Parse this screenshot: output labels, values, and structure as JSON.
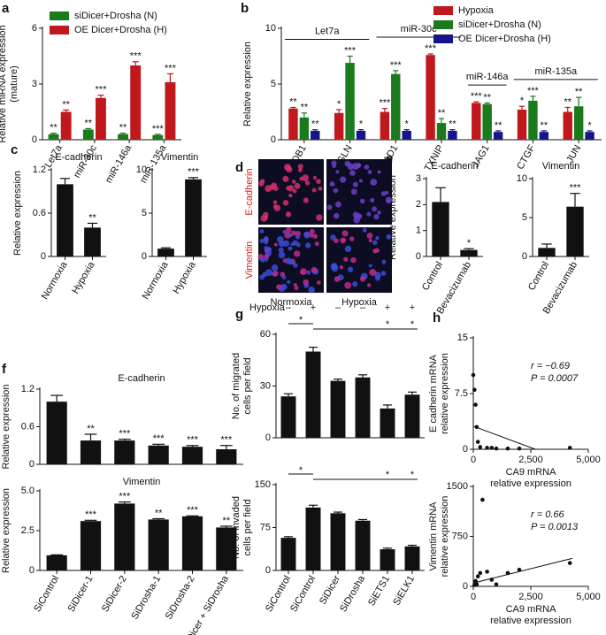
{
  "chart_data": [
    {
      "type": "bar",
      "panel": "a",
      "ylabel": [
        "Relative miRNA expression",
        "(mature)"
      ],
      "categories": [
        "Let7a",
        "miR-30c",
        "miR-146a",
        "miR-135a"
      ],
      "series": [
        {
          "name": "siDicer+Drosha (N)",
          "color": "#1b7a1b",
          "values": [
            0.3,
            0.55,
            0.3,
            0.25
          ],
          "errors": [
            0.05,
            0.05,
            0.05,
            0.04
          ],
          "annotations": [
            "**",
            "**",
            "**",
            "***"
          ]
        },
        {
          "name": "OE Dicer+Drosha (H)",
          "color": "#c0181c",
          "values": [
            1.5,
            2.25,
            4.0,
            3.1
          ],
          "errors": [
            0.1,
            0.15,
            0.2,
            0.45
          ],
          "annotations": [
            "**",
            "***",
            "***",
            "***"
          ]
        }
      ],
      "ylim": [
        0,
        6
      ],
      "yticks": [
        0,
        3,
        6
      ],
      "legend": "upper left"
    },
    {
      "type": "bar",
      "panel": "b",
      "ylabel": [
        "Relative expression"
      ],
      "categories": [
        "RHOB1",
        "TAGLN",
        "SERTAD1",
        "TXNIP",
        "JAG1",
        "CTGF",
        "JUN"
      ],
      "groups": [
        {
          "label": "Let7a",
          "span": [
            "RHOB1",
            "TAGLN"
          ]
        },
        {
          "label": "miR-30c",
          "span": [
            "SERTAD1",
            "TXNIP"
          ]
        },
        {
          "label": "miR-146a",
          "span": [
            "JAG1",
            "JAG1"
          ]
        },
        {
          "label": "miR-135a",
          "span": [
            "CTGF",
            "JUN"
          ]
        }
      ],
      "series": [
        {
          "name": "Hypoxia",
          "color": "#c0181c",
          "values": [
            2.8,
            2.4,
            2.5,
            7.6,
            3.3,
            2.7,
            2.5
          ],
          "errors": [
            0.1,
            0.3,
            0.3,
            0.1,
            0.1,
            0.3,
            0.4
          ],
          "annotations": [
            "**",
            "*",
            "***",
            "***",
            "***",
            "*",
            "**"
          ]
        },
        {
          "name": "siDicer+Drosha (N)",
          "color": "#1b7a1b",
          "values": [
            2.0,
            6.9,
            5.9,
            1.5,
            3.2,
            3.5,
            3.0
          ],
          "errors": [
            0.4,
            0.6,
            0.3,
            0.4,
            0.1,
            0.4,
            0.8
          ],
          "annotations": [
            "**",
            "***",
            "***",
            "**",
            "**",
            "***",
            "**"
          ]
        },
        {
          "name": "OE Dicer+Drosha (H)",
          "color": "#17158a",
          "values": [
            0.8,
            0.8,
            0.8,
            0.8,
            0.7,
            0.7,
            0.7
          ],
          "errors": [
            0.1,
            0.1,
            0.1,
            0.1,
            0.1,
            0.1,
            0.1
          ],
          "annotations": [
            "**",
            "*",
            "*",
            "**",
            "**",
            "**",
            "*"
          ]
        }
      ],
      "ylim": [
        0,
        10
      ],
      "yticks": [
        0,
        5,
        10
      ],
      "legend": "upper right"
    },
    {
      "type": "bar",
      "panel": "c",
      "title": "E-cadherin",
      "ylabel": [
        "Relative expression"
      ],
      "categories": [
        "Normoxia",
        "Hypoxia"
      ],
      "values": [
        1.0,
        0.4
      ],
      "errors": [
        0.08,
        0.06
      ],
      "annotations": [
        null,
        "**"
      ],
      "color": "#111111",
      "ylim": [
        0,
        1.2
      ],
      "yticks": [
        0,
        0.6,
        1.2
      ]
    },
    {
      "type": "bar",
      "title": "Vimentin",
      "categories": [
        "Normoxia",
        "Hypoxia"
      ],
      "values": [
        0.9,
        8.9
      ],
      "errors": [
        0.1,
        0.2
      ],
      "annotations": [
        null,
        "***"
      ],
      "color": "#111111",
      "ylim": [
        0,
        10
      ],
      "yticks": [
        0,
        5,
        10
      ]
    },
    {
      "type": "bar",
      "panel": "e",
      "title": "E-cadherin",
      "ylabel": [
        "Relative expression"
      ],
      "categories": [
        "Control",
        "Bevacizumab"
      ],
      "values": [
        2.1,
        0.25
      ],
      "errors": [
        0.55,
        0.05
      ],
      "annotations": [
        null,
        "*"
      ],
      "color": "#111111",
      "ylim": [
        0,
        3
      ],
      "yticks": [
        0,
        1,
        2,
        3
      ]
    },
    {
      "type": "bar",
      "title": "Vimentin",
      "categories": [
        "Control",
        "Bevacizumab"
      ],
      "values": [
        1.1,
        6.4
      ],
      "errors": [
        0.5,
        1.7
      ],
      "annotations": [
        null,
        "***"
      ],
      "color": "#111111",
      "ylim": [
        0,
        10
      ],
      "yticks": [
        0,
        5,
        10
      ]
    },
    {
      "type": "bar",
      "panel": "f",
      "title": "E-cadherin",
      "ylabel": [
        "Relative expression"
      ],
      "categories": [
        null,
        null,
        null,
        null,
        null,
        null
      ],
      "values": [
        1.0,
        0.38,
        0.38,
        0.3,
        0.28,
        0.24
      ],
      "errors": [
        0.1,
        0.1,
        0.02,
        0.02,
        0.02,
        0.06
      ],
      "annotations": [
        null,
        "**",
        "***",
        "***",
        "***",
        "***"
      ],
      "color": "#111111",
      "ylim": [
        0,
        1.2
      ],
      "yticks": [
        0,
        0.6,
        1.2
      ]
    },
    {
      "type": "bar",
      "title": "Vimentin",
      "ylabel": [
        "Relative expression"
      ],
      "categories": [
        "SiControl",
        "SiDicer-1",
        "SiDicer-2",
        "SiDrosha-1",
        "SiDrosha-2",
        "SiDicer + SiDrosha"
      ],
      "values": [
        0.95,
        3.1,
        4.2,
        3.2,
        3.4,
        2.7
      ],
      "errors": [
        0.03,
        0.05,
        0.1,
        0.05,
        0.03,
        0.08
      ],
      "annotations": [
        null,
        "***",
        "***",
        "**",
        "***",
        "**"
      ],
      "color": "#111111",
      "ylim": [
        0,
        5
      ],
      "yticks": [
        0,
        2.5,
        {
          "value": 5,
          "label": "5.0"
        }
      ]
    },
    {
      "type": "bar",
      "panel": "g",
      "ylabel": [
        "No. of migrated",
        "cells per field"
      ],
      "categories": [
        null,
        null,
        null,
        null,
        null,
        null
      ],
      "condition": {
        "label": "Hypoxia",
        "values": [
          "–",
          "+",
          "–",
          "–",
          "+",
          "+"
        ]
      },
      "values": [
        24,
        50,
        33,
        35,
        17,
        25
      ],
      "errors": [
        1.5,
        2.5,
        1,
        1.5,
        2,
        1.5
      ],
      "annotations": [
        "*",
        null,
        null,
        null,
        "*",
        "*"
      ],
      "color": "#111111",
      "ylim": [
        0,
        60
      ],
      "yticks": [
        0,
        30,
        60
      ]
    },
    {
      "type": "bar",
      "ylabel": [
        "No. of invaded",
        "cells per field"
      ],
      "categories": [
        "SiControl",
        "SiControl",
        "SiDicer",
        "SiDrosha",
        "SiETS1",
        "SiELK1"
      ],
      "values": [
        57,
        110,
        100,
        87,
        37,
        42
      ],
      "errors": [
        2,
        4,
        2,
        2,
        2,
        2
      ],
      "annotations": [
        "*",
        null,
        null,
        null,
        "*",
        "*"
      ],
      "color": "#111111",
      "ylim": [
        0,
        150
      ],
      "yticks": [
        0,
        75,
        150
      ]
    },
    {
      "type": "scatter",
      "panel": "h",
      "ylabel": [
        "E cadherin mRNA",
        "relative expression"
      ],
      "xlabel": [
        "CA9 mRNA",
        "relative expression"
      ],
      "x": [
        0,
        50,
        100,
        150,
        200,
        300,
        600,
        800,
        1000,
        1500,
        2000,
        4200
      ],
      "values": [
        10,
        8,
        6,
        3,
        1,
        0.3,
        0.2,
        0.2,
        0.1,
        0.1,
        0.1,
        0.2
      ],
      "trend_line": {
        "x": [
          0,
          2700
        ],
        "y": [
          3.1,
          0
        ]
      },
      "annotations": [
        "r = −0.69",
        "P = 0.0007"
      ],
      "color": "#111111",
      "xlim": [
        0,
        5000
      ],
      "xticks": [
        0,
        {
          "value": 2500,
          "label": "2,500"
        },
        {
          "value": 5000,
          "label": "5,000"
        }
      ],
      "ylim": [
        0,
        15
      ],
      "yticks": [
        0,
        7.5,
        15
      ]
    },
    {
      "type": "scatter",
      "ylabel": [
        "Vimentin mRNA",
        "relative expression"
      ],
      "xlabel": [
        "CA9 mRNA",
        "relative expression"
      ],
      "x": [
        50,
        100,
        150,
        200,
        300,
        400,
        600,
        800,
        1000,
        1500,
        2000,
        4200
      ],
      "values": [
        20,
        80,
        30,
        150,
        200,
        1300,
        220,
        100,
        30,
        200,
        250,
        350
      ],
      "trend_line": {
        "x": [
          0,
          4300
        ],
        "y": [
          50,
          420
        ]
      },
      "annotations": [
        "r = 0.66",
        "P = 0.0013"
      ],
      "color": "#111111",
      "xlim": [
        0,
        5000
      ],
      "xticks": [
        0,
        {
          "value": 2500,
          "label": "2,500"
        },
        {
          "value": 5000,
          "label": "5,000"
        }
      ],
      "ylim": [
        0,
        1500
      ],
      "yticks": [
        0,
        750,
        1500
      ]
    }
  ],
  "image_panel": {
    "panel": "d",
    "row_labels": [
      "E-cadherin",
      "Vimentin"
    ],
    "col_labels": [
      "Normoxia",
      "Hypoxia"
    ]
  }
}
